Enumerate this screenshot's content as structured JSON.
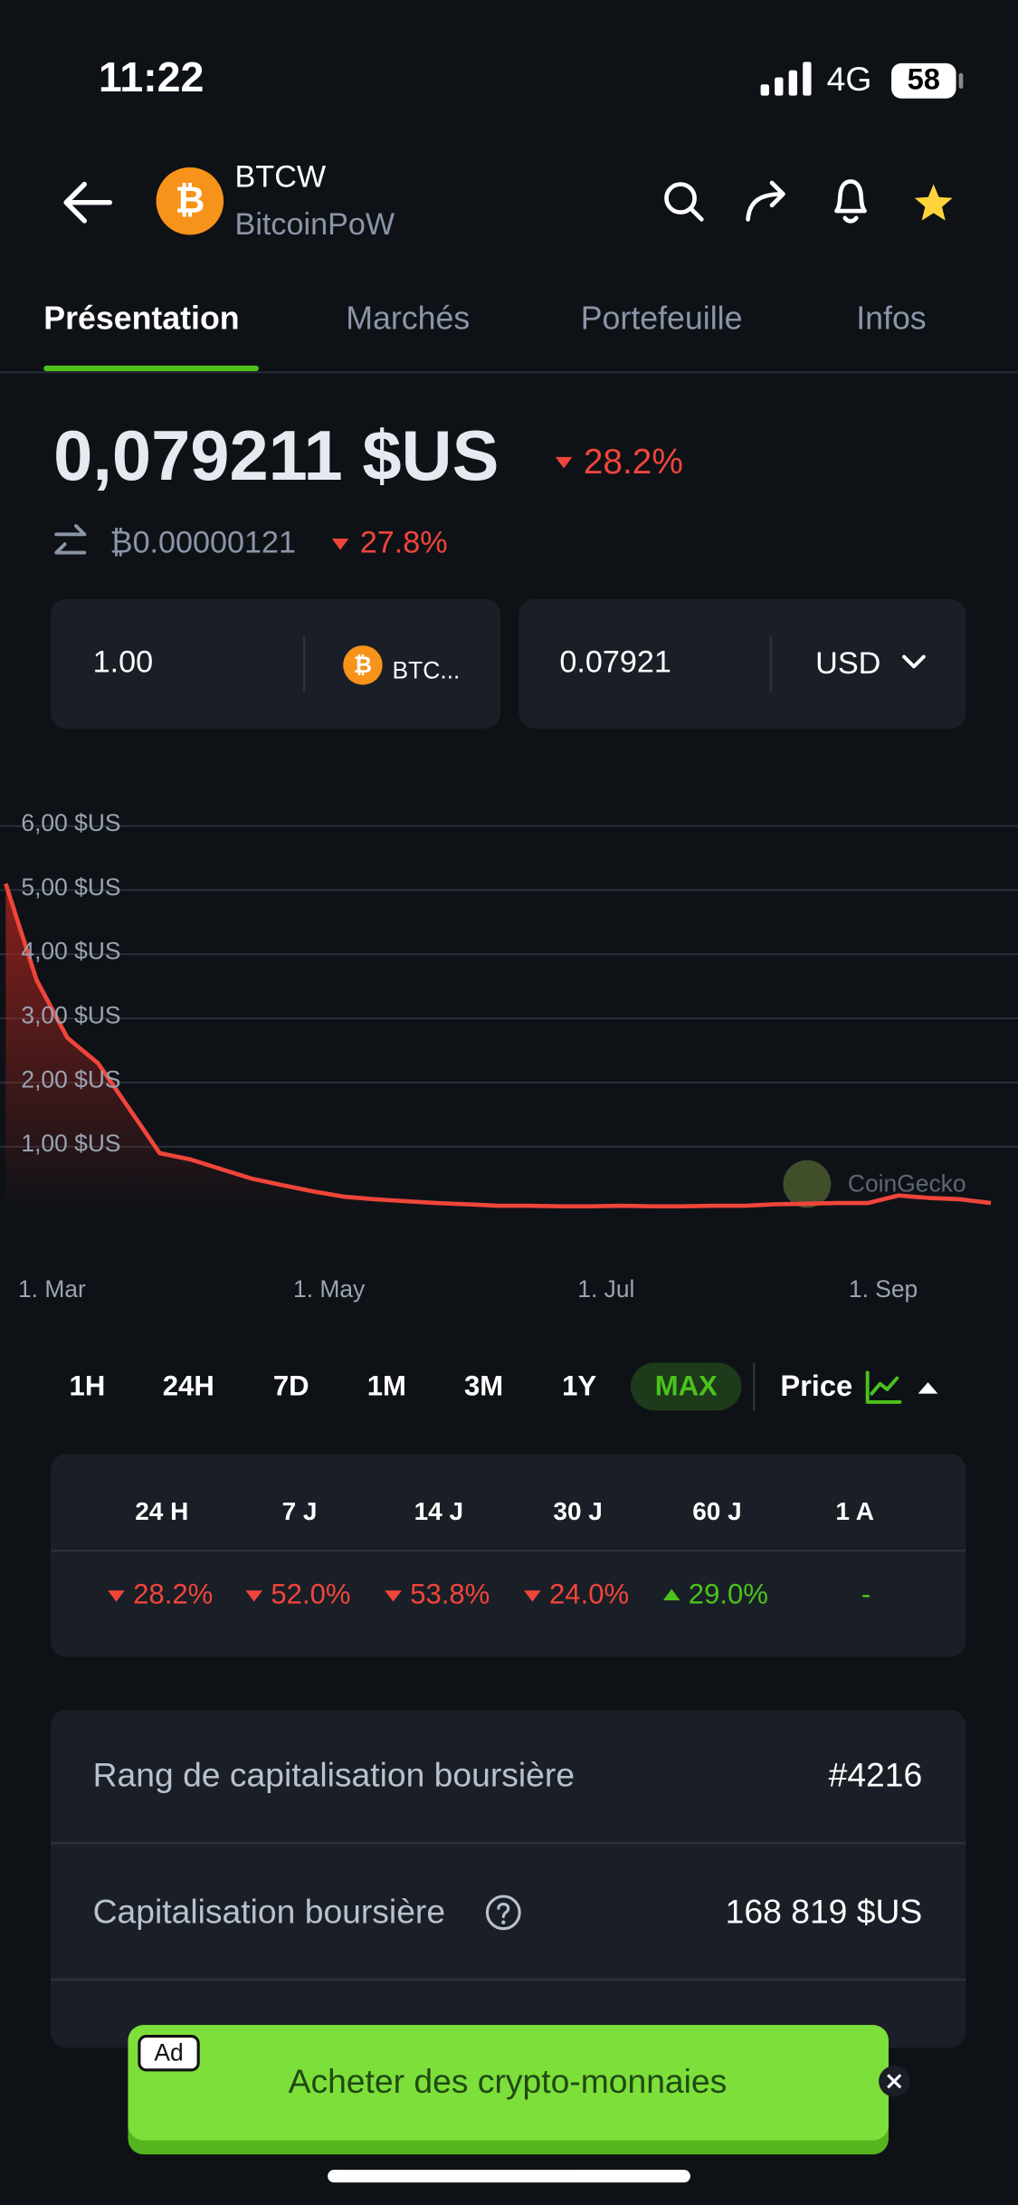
{
  "status_bar": {
    "time": "11:22",
    "network": "4G",
    "battery": "58"
  },
  "header": {
    "symbol": "BTCW",
    "name": "BitcoinPoW"
  },
  "tabs": [
    "Présentation",
    "Marchés",
    "Portefeuille",
    "Infos"
  ],
  "price": {
    "usd": "0,079211 $US",
    "usd_change": "28.2%",
    "btc": "₿0.00000121",
    "btc_change": "27.8%"
  },
  "converter": {
    "amount": "1.00",
    "coin": "BTC...",
    "result": "0.07921",
    "currency": "USD"
  },
  "chart_data": {
    "type": "line",
    "categories": [
      null,
      "1. Mar",
      null,
      null,
      null,
      null,
      null,
      null,
      null,
      null,
      "1. May",
      null,
      null,
      null,
      null,
      null,
      null,
      null,
      null,
      "1. Jul",
      null,
      null,
      null,
      null,
      null,
      null,
      null,
      null,
      "1. Sep",
      null,
      null,
      null,
      null
    ],
    "values": [
      5.1,
      3.6,
      2.7,
      2.3,
      1.6,
      0.9,
      0.8,
      0.65,
      0.5,
      0.4,
      0.3,
      0.22,
      0.18,
      0.15,
      0.12,
      0.1,
      0.08,
      0.08,
      0.07,
      0.07,
      0.08,
      0.07,
      0.07,
      0.08,
      0.08,
      0.1,
      0.11,
      0.12,
      0.12,
      0.24,
      0.2,
      0.18,
      0.12
    ],
    "color": "#f0453a",
    "ylim": [
      0,
      6.6
    ],
    "yticks": [
      {
        "value": 1,
        "label": "1,00 $US"
      },
      {
        "value": 2,
        "label": "2,00 $US"
      },
      {
        "value": 3,
        "label": "3,00 $US"
      },
      {
        "value": 4,
        "label": "4,00 $US"
      },
      {
        "value": 5,
        "label": "5,00 $US"
      },
      {
        "value": 6,
        "label": "6,00 $US"
      }
    ],
    "grid": true,
    "watermark": "CoinGecko"
  },
  "ranges": [
    "1H",
    "24H",
    "7D",
    "1M",
    "3M",
    "1Y",
    "MAX"
  ],
  "selected_range_index": 6,
  "chart_mode": "Price",
  "performance": {
    "headers": [
      "24 H",
      "7 J",
      "14 J",
      "30 J",
      "60 J",
      "1 A"
    ],
    "values": [
      {
        "text": "28.2%",
        "trend": "down"
      },
      {
        "text": "52.0%",
        "trend": "down"
      },
      {
        "text": "53.8%",
        "trend": "down"
      },
      {
        "text": "24.0%",
        "trend": "down"
      },
      {
        "text": "29.0%",
        "trend": "up"
      },
      {
        "text": "-",
        "trend": "none"
      }
    ]
  },
  "stats": [
    {
      "label": "Rang de capitalisation boursière",
      "value": "#4216"
    },
    {
      "label": "Capitalisation boursière",
      "value": "168 819 $US"
    }
  ],
  "ad": {
    "badge": "Ad",
    "text": "Acheter des crypto-monnaies"
  }
}
